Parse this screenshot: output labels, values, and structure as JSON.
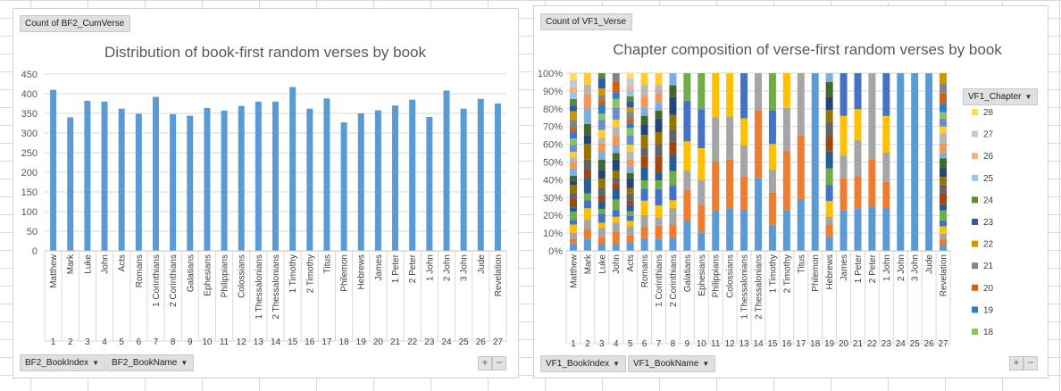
{
  "left_chart": {
    "filter_button": "Count of BF2_CumVerse",
    "axis_buttons": [
      "BF2_BookIndex",
      "BF2_BookName"
    ],
    "expand_buttons": [
      "+",
      "−"
    ]
  },
  "right_chart": {
    "filter_button": "Count of VF1_Verse",
    "legend_button": "VF1_Chapter",
    "axis_buttons": [
      "VF1_BookIndex",
      "VF1_BookName"
    ],
    "expand_buttons": [
      "+",
      "−"
    ]
  },
  "chart_data": [
    {
      "type": "bar",
      "title": "Distribution of book-first random verses by book",
      "xlabel": "",
      "ylabel": "",
      "ylim": [
        0,
        450
      ],
      "yticks": [
        0,
        50,
        100,
        150,
        200,
        250,
        300,
        350,
        400,
        450
      ],
      "grid": true,
      "color": "#5b9bd5",
      "categories": [
        "Matthew",
        "Mark",
        "Luke",
        "John",
        "Acts",
        "Romans",
        "1 Corinthians",
        "2 Corinthians",
        "Galatians",
        "Ephesians",
        "Philippians",
        "Colossians",
        "1 Thessalonians",
        "2 Thessalonians",
        "1 Timothy",
        "2 Timothy",
        "Titus",
        "Philemon",
        "Hebrews",
        "James",
        "1 Peter",
        "2 Peter",
        "1 John",
        "2 John",
        "3 John",
        "Jude",
        "Revelation"
      ],
      "book_index": [
        "1",
        "2",
        "3",
        "4",
        "5",
        "6",
        "7",
        "8",
        "9",
        "10",
        "11",
        "12",
        "13",
        "14",
        "15",
        "16",
        "17",
        "18",
        "19",
        "20",
        "21",
        "22",
        "23",
        "24",
        "25",
        "26",
        "27"
      ],
      "values": [
        410,
        340,
        382,
        380,
        362,
        349,
        392,
        348,
        344,
        364,
        357,
        369,
        380,
        380,
        417,
        362,
        388,
        327,
        350,
        358,
        370,
        385,
        341,
        408,
        362,
        387,
        375
      ]
    },
    {
      "type": "bar",
      "stacked": "percent",
      "title": "Chapter composition of verse-first random verses by book",
      "xlabel": "",
      "ylabel": "",
      "ylim": [
        0,
        100
      ],
      "yticks": [
        "0%",
        "10%",
        "20%",
        "30%",
        "40%",
        "50%",
        "60%",
        "70%",
        "80%",
        "90%",
        "100%"
      ],
      "grid": true,
      "legend_position": "right",
      "legend_visible": [
        "28",
        "27",
        "26",
        "25",
        "24",
        "23",
        "22",
        "21",
        "20",
        "19",
        "18"
      ],
      "series_colors": {
        "1": "#5b9bd5",
        "2": "#ed7d31",
        "3": "#a5a5a5",
        "4": "#ffc000",
        "5": "#4472c4",
        "6": "#70ad47",
        "7": "#255e91",
        "8": "#9e480e",
        "9": "#636363",
        "10": "#997300",
        "11": "#264478",
        "12": "#43682b",
        "13": "#7cafdd",
        "14": "#f1975a",
        "15": "#b7b7b7",
        "16": "#ffcd33",
        "17": "#698ed0",
        "18": "#8cc168",
        "19": "#327dc2",
        "20": "#d26012",
        "21": "#848484",
        "22": "#cc9a00",
        "23": "#335aa1",
        "24": "#5a8a39",
        "25": "#9dc3e6",
        "26": "#f4b183",
        "27": "#c9c9c9",
        "28": "#ffd966"
      },
      "categories": [
        "Matthew",
        "Mark",
        "Luke",
        "John",
        "Acts",
        "Romans",
        "1 Corinthians",
        "2 Corinthians",
        "Galatians",
        "Ephesians",
        "Philippians",
        "Colossians",
        "1 Thessalonians",
        "2 Thessalonians",
        "1 Timothy",
        "2 Timothy",
        "Titus",
        "Philemon",
        "Hebrews",
        "James",
        "1 Peter",
        "2 Peter",
        "1 John",
        "2 John",
        "3 John",
        "Jude",
        "Revelation"
      ],
      "book_index": [
        "1",
        "2",
        "3",
        "4",
        "5",
        "6",
        "7",
        "8",
        "9",
        "10",
        "11",
        "12",
        "13",
        "14",
        "15",
        "16",
        "17",
        "18",
        "19",
        "20",
        "21",
        "22",
        "23",
        "24",
        "25",
        "26",
        "27"
      ],
      "chapter_counts": [
        28,
        16,
        24,
        21,
        28,
        16,
        16,
        13,
        6,
        6,
        4,
        4,
        5,
        3,
        6,
        4,
        3,
        1,
        13,
        5,
        5,
        3,
        5,
        1,
        1,
        1,
        22
      ]
    }
  ]
}
